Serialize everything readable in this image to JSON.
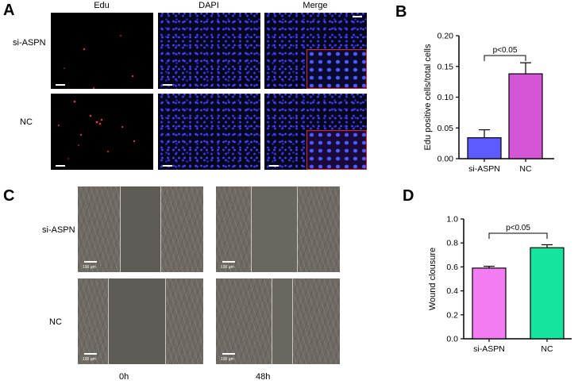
{
  "panels": {
    "a": "A",
    "b": "B",
    "c": "C",
    "d": "D"
  },
  "panel_a": {
    "columns": [
      "Edu",
      "DAPI",
      "Merge"
    ],
    "rows": [
      "si-ASPN",
      "NC"
    ]
  },
  "panel_c": {
    "rows": [
      "si-ASPN",
      "NC"
    ],
    "timepoints": [
      "0h",
      "48h"
    ],
    "scale_bar": "100 μm"
  },
  "chart_data": [
    {
      "type": "bar",
      "categories": [
        "si-ASPN",
        "NC"
      ],
      "values": [
        0.034,
        0.138
      ],
      "errors": [
        0.013,
        0.018
      ],
      "colors": [
        "#5b5bff",
        "#d455d6"
      ],
      "ylabel": "Edu positive cells/total cells",
      "ylim": [
        0,
        0.2
      ],
      "yticks": [
        "0.00",
        "0.05",
        "0.10",
        "0.15",
        "0.20"
      ],
      "annotation": "p<0.05"
    },
    {
      "type": "bar",
      "categories": [
        "si-ASPN",
        "NC"
      ],
      "values": [
        0.59,
        0.76
      ],
      "errors": [
        0.015,
        0.025
      ],
      "colors": [
        "#f37cf3",
        "#14e49d"
      ],
      "ylabel": "Wound clousure",
      "ylim": [
        0,
        1.0
      ],
      "yticks": [
        "0.0",
        "0.2",
        "0.4",
        "0.6",
        "0.8",
        "1.0"
      ],
      "annotation": "p<0.05"
    }
  ]
}
